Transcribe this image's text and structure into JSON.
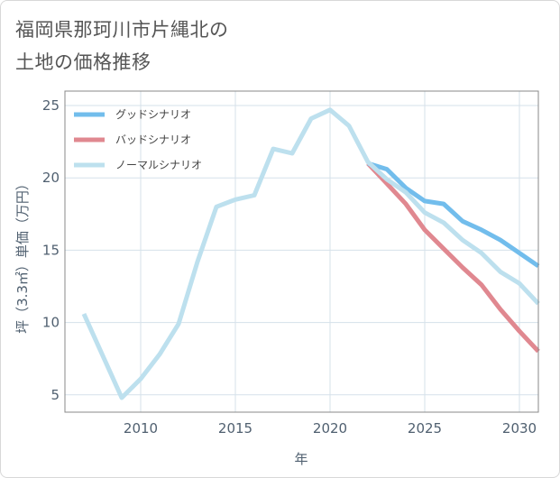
{
  "page": {
    "title_line1": "福岡県那珂川市片縄北の",
    "title_line2": "土地の価格推移"
  },
  "chart_data": {
    "type": "line",
    "xlabel": "年",
    "ylabel": "坪（3.3㎡）単価（万円）",
    "xlim": [
      2006,
      2031
    ],
    "ylim": [
      3.8,
      26.0
    ],
    "xticks": [
      2010,
      2015,
      2020,
      2025,
      2030
    ],
    "yticks": [
      5,
      10,
      15,
      20,
      25
    ],
    "grid": true,
    "legend_position": "top-left",
    "series": [
      {
        "name": "グッドシナリオ",
        "color": "#72bdec",
        "x": [
          2022,
          2023,
          2024,
          2025,
          2026,
          2027,
          2028,
          2029,
          2030,
          2031
        ],
        "y": [
          21.0,
          20.6,
          19.3,
          18.4,
          18.2,
          17.0,
          16.4,
          15.7,
          14.8,
          13.9
        ]
      },
      {
        "name": "バッドシナリオ",
        "color": "#e08890",
        "x": [
          2022,
          2023,
          2024,
          2025,
          2026,
          2027,
          2028,
          2029,
          2030,
          2031
        ],
        "y": [
          21.0,
          19.6,
          18.2,
          16.4,
          15.1,
          13.8,
          12.6,
          10.9,
          9.4,
          8.0
        ]
      },
      {
        "name": "ノーマルシナリオ",
        "color": "#bde0ee",
        "x": [
          2007,
          2008,
          2009,
          2010,
          2011,
          2012,
          2013,
          2014,
          2015,
          2016,
          2017,
          2018,
          2019,
          2020,
          2021,
          2022,
          2023,
          2024,
          2025,
          2026,
          2027,
          2028,
          2029,
          2030,
          2031
        ],
        "y": [
          10.6,
          7.7,
          4.8,
          6.1,
          7.8,
          9.9,
          14.2,
          18.0,
          18.5,
          18.8,
          22.0,
          21.7,
          24.1,
          24.7,
          23.6,
          21.1,
          19.9,
          19.0,
          17.6,
          16.9,
          15.7,
          14.8,
          13.5,
          12.7,
          11.3
        ]
      }
    ]
  }
}
